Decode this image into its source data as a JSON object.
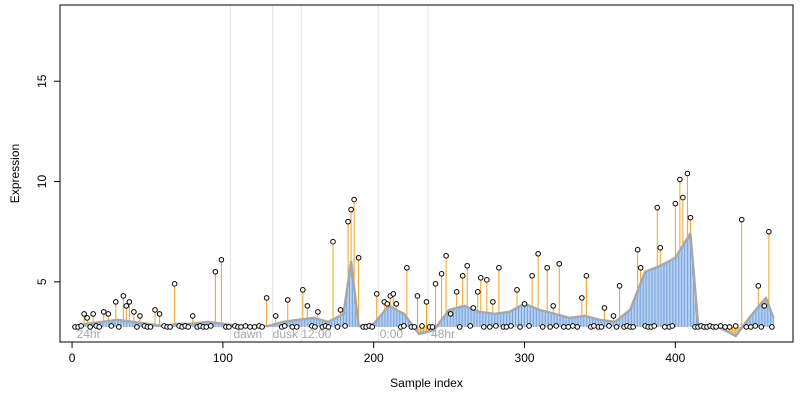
{
  "chart_data": {
    "type": "scatter",
    "title": "",
    "xlabel": "Sample index",
    "ylabel": "Expression",
    "xlim": [
      -8,
      478
    ],
    "ylim": [
      2.0,
      18.8
    ],
    "xticks": [
      0,
      100,
      200,
      300,
      400
    ],
    "yticks": [
      5,
      10,
      15
    ],
    "grid": false,
    "legend": "none",
    "baseline": 2.75,
    "colors": {
      "above_baseline_stem": "#f0a020",
      "below_baseline_stem": "#6fa0e0",
      "smooth_line": "#a8a8a8",
      "point_fill": "#ffffff",
      "point_stroke": "#000000",
      "phase_line": "#e4e4e4",
      "phase_text": "#a6a6a6"
    },
    "phase_boundaries": [
      105,
      133,
      152,
      203,
      236
    ],
    "phase_labels": [
      {
        "x": 3,
        "label": "24hr"
      },
      {
        "x": 107,
        "label": "dawn"
      },
      {
        "x": 133,
        "label": "dusk"
      },
      {
        "x": 152,
        "label": "12:00"
      },
      {
        "x": 204,
        "label": "0:00"
      },
      {
        "x": 238,
        "label": "48hr"
      }
    ],
    "smooth_line": {
      "x": [
        0,
        10,
        20,
        30,
        40,
        50,
        60,
        70,
        80,
        90,
        100,
        110,
        120,
        130,
        140,
        150,
        160,
        170,
        180,
        185,
        190,
        200,
        210,
        220,
        230,
        240,
        250,
        260,
        270,
        280,
        290,
        300,
        310,
        320,
        330,
        340,
        350,
        360,
        370,
        380,
        390,
        400,
        405,
        410,
        415,
        420,
        430,
        440,
        450,
        460,
        465
      ],
      "y": [
        2.75,
        2.9,
        3.0,
        3.1,
        3.0,
        2.9,
        2.8,
        2.9,
        2.9,
        3.0,
        2.9,
        2.8,
        2.8,
        2.8,
        3.0,
        3.1,
        3.2,
        3.0,
        3.4,
        6.0,
        2.8,
        2.9,
        3.8,
        3.4,
        2.4,
        2.6,
        3.6,
        3.8,
        3.5,
        3.4,
        3.5,
        3.9,
        3.6,
        3.4,
        3.2,
        3.3,
        3.1,
        3.0,
        3.6,
        5.5,
        5.8,
        6.2,
        6.8,
        7.4,
        2.9,
        2.8,
        2.7,
        2.3,
        3.3,
        4.2,
        3.2
      ]
    },
    "peaks": {
      "x": [
        8,
        10,
        14,
        21,
        24,
        29,
        34,
        36,
        38,
        41,
        45,
        55,
        58,
        68,
        80,
        95,
        99,
        129,
        135,
        143,
        153,
        156,
        163,
        173,
        178,
        183,
        185,
        187,
        190,
        202,
        207,
        209,
        211,
        213,
        215,
        222,
        229,
        235,
        241,
        245,
        248,
        251,
        255,
        259,
        262,
        266,
        269,
        271,
        275,
        279,
        283,
        295,
        300,
        305,
        309,
        315,
        319,
        323,
        338,
        341,
        353,
        359,
        363,
        375,
        377,
        388,
        390,
        400,
        403,
        405,
        408,
        410,
        444,
        455,
        459,
        462
      ],
      "y": [
        3.4,
        3.2,
        3.4,
        3.5,
        3.4,
        4.0,
        4.3,
        3.8,
        4.0,
        3.5,
        3.3,
        3.6,
        3.4,
        4.9,
        3.3,
        5.5,
        6.1,
        4.2,
        3.3,
        4.1,
        4.6,
        3.8,
        3.5,
        7.0,
        3.6,
        8.0,
        8.6,
        9.1,
        6.2,
        4.4,
        4.0,
        3.9,
        4.3,
        4.4,
        3.9,
        5.7,
        4.3,
        4.0,
        4.9,
        5.4,
        6.3,
        3.4,
        4.5,
        5.3,
        5.8,
        3.7,
        4.5,
        5.2,
        5.1,
        4.0,
        5.7,
        4.6,
        3.9,
        5.3,
        6.4,
        5.7,
        3.8,
        5.9,
        4.2,
        5.3,
        3.7,
        3.3,
        4.8,
        6.6,
        5.7,
        8.7,
        6.7,
        8.9,
        10.1,
        9.2,
        10.4,
        8.2,
        8.1,
        4.8,
        3.8,
        7.5
      ]
    },
    "low_points": {
      "x": [
        2,
        4,
        6,
        12,
        16,
        18,
        26,
        31,
        43,
        48,
        50,
        52,
        61,
        63,
        65,
        71,
        73,
        75,
        77,
        83,
        85,
        87,
        89,
        92,
        102,
        104,
        108,
        110,
        112,
        115,
        118,
        121,
        124,
        126,
        139,
        141,
        146,
        149,
        159,
        161,
        166,
        168,
        170,
        176,
        181,
        193,
        195,
        197,
        199,
        218,
        220,
        225,
        227,
        232,
        237,
        239,
        257,
        264,
        273,
        277,
        281,
        286,
        288,
        291,
        297,
        303,
        312,
        317,
        321,
        326,
        329,
        332,
        335,
        344,
        346,
        349,
        351,
        356,
        361,
        366,
        368,
        370,
        372,
        380,
        382,
        384,
        386,
        393,
        396,
        398,
        413,
        415,
        417,
        419,
        421,
        423,
        425,
        427,
        430,
        433,
        436,
        440,
        447,
        450,
        453,
        457,
        464
      ],
      "y": [
        2.75,
        2.75,
        2.8,
        2.75,
        2.8,
        2.75,
        2.8,
        2.75,
        2.75,
        2.8,
        2.75,
        2.75,
        2.8,
        2.75,
        2.75,
        2.8,
        2.75,
        2.8,
        2.75,
        2.75,
        2.8,
        2.75,
        2.75,
        2.8,
        2.75,
        2.75,
        2.8,
        2.75,
        2.75,
        2.8,
        2.75,
        2.75,
        2.8,
        2.75,
        2.75,
        2.8,
        2.75,
        2.75,
        2.8,
        2.75,
        2.75,
        2.8,
        2.75,
        2.75,
        2.8,
        2.75,
        2.75,
        2.8,
        2.75,
        2.75,
        2.8,
        2.75,
        2.75,
        2.8,
        2.75,
        2.75,
        2.75,
        2.8,
        2.75,
        2.75,
        2.8,
        2.75,
        2.75,
        2.8,
        2.75,
        2.8,
        2.75,
        2.75,
        2.8,
        2.75,
        2.75,
        2.8,
        2.75,
        2.75,
        2.8,
        2.75,
        2.75,
        2.8,
        2.75,
        2.75,
        2.8,
        2.75,
        2.75,
        2.8,
        2.75,
        2.75,
        2.8,
        2.75,
        2.75,
        2.8,
        2.75,
        2.75,
        2.8,
        2.75,
        2.75,
        2.8,
        2.75,
        2.75,
        2.8,
        2.75,
        2.75,
        2.8,
        2.75,
        2.75,
        2.8,
        2.75,
        2.75
      ]
    }
  }
}
